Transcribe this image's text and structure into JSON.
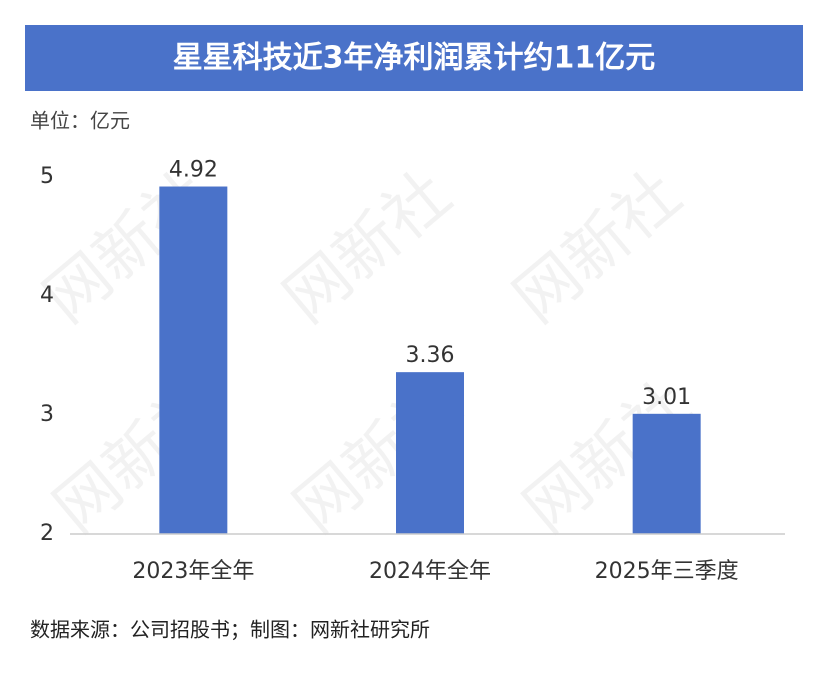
{
  "chart_data": {
    "type": "bar",
    "title": "星星科技近3年净利润累计约11亿元",
    "unit_label": "单位：亿元",
    "source": "数据来源：公司招股书；制图：网新社研究所",
    "watermark": "网新社",
    "categories": [
      "2023年全年",
      "2024年全年",
      "2025年三季度"
    ],
    "values": [
      4.92,
      3.36,
      3.01
    ],
    "color": "#4a72c9",
    "ylim": [
      2,
      5
    ],
    "yticks": [
      2,
      3,
      4,
      5
    ],
    "grid": false
  }
}
